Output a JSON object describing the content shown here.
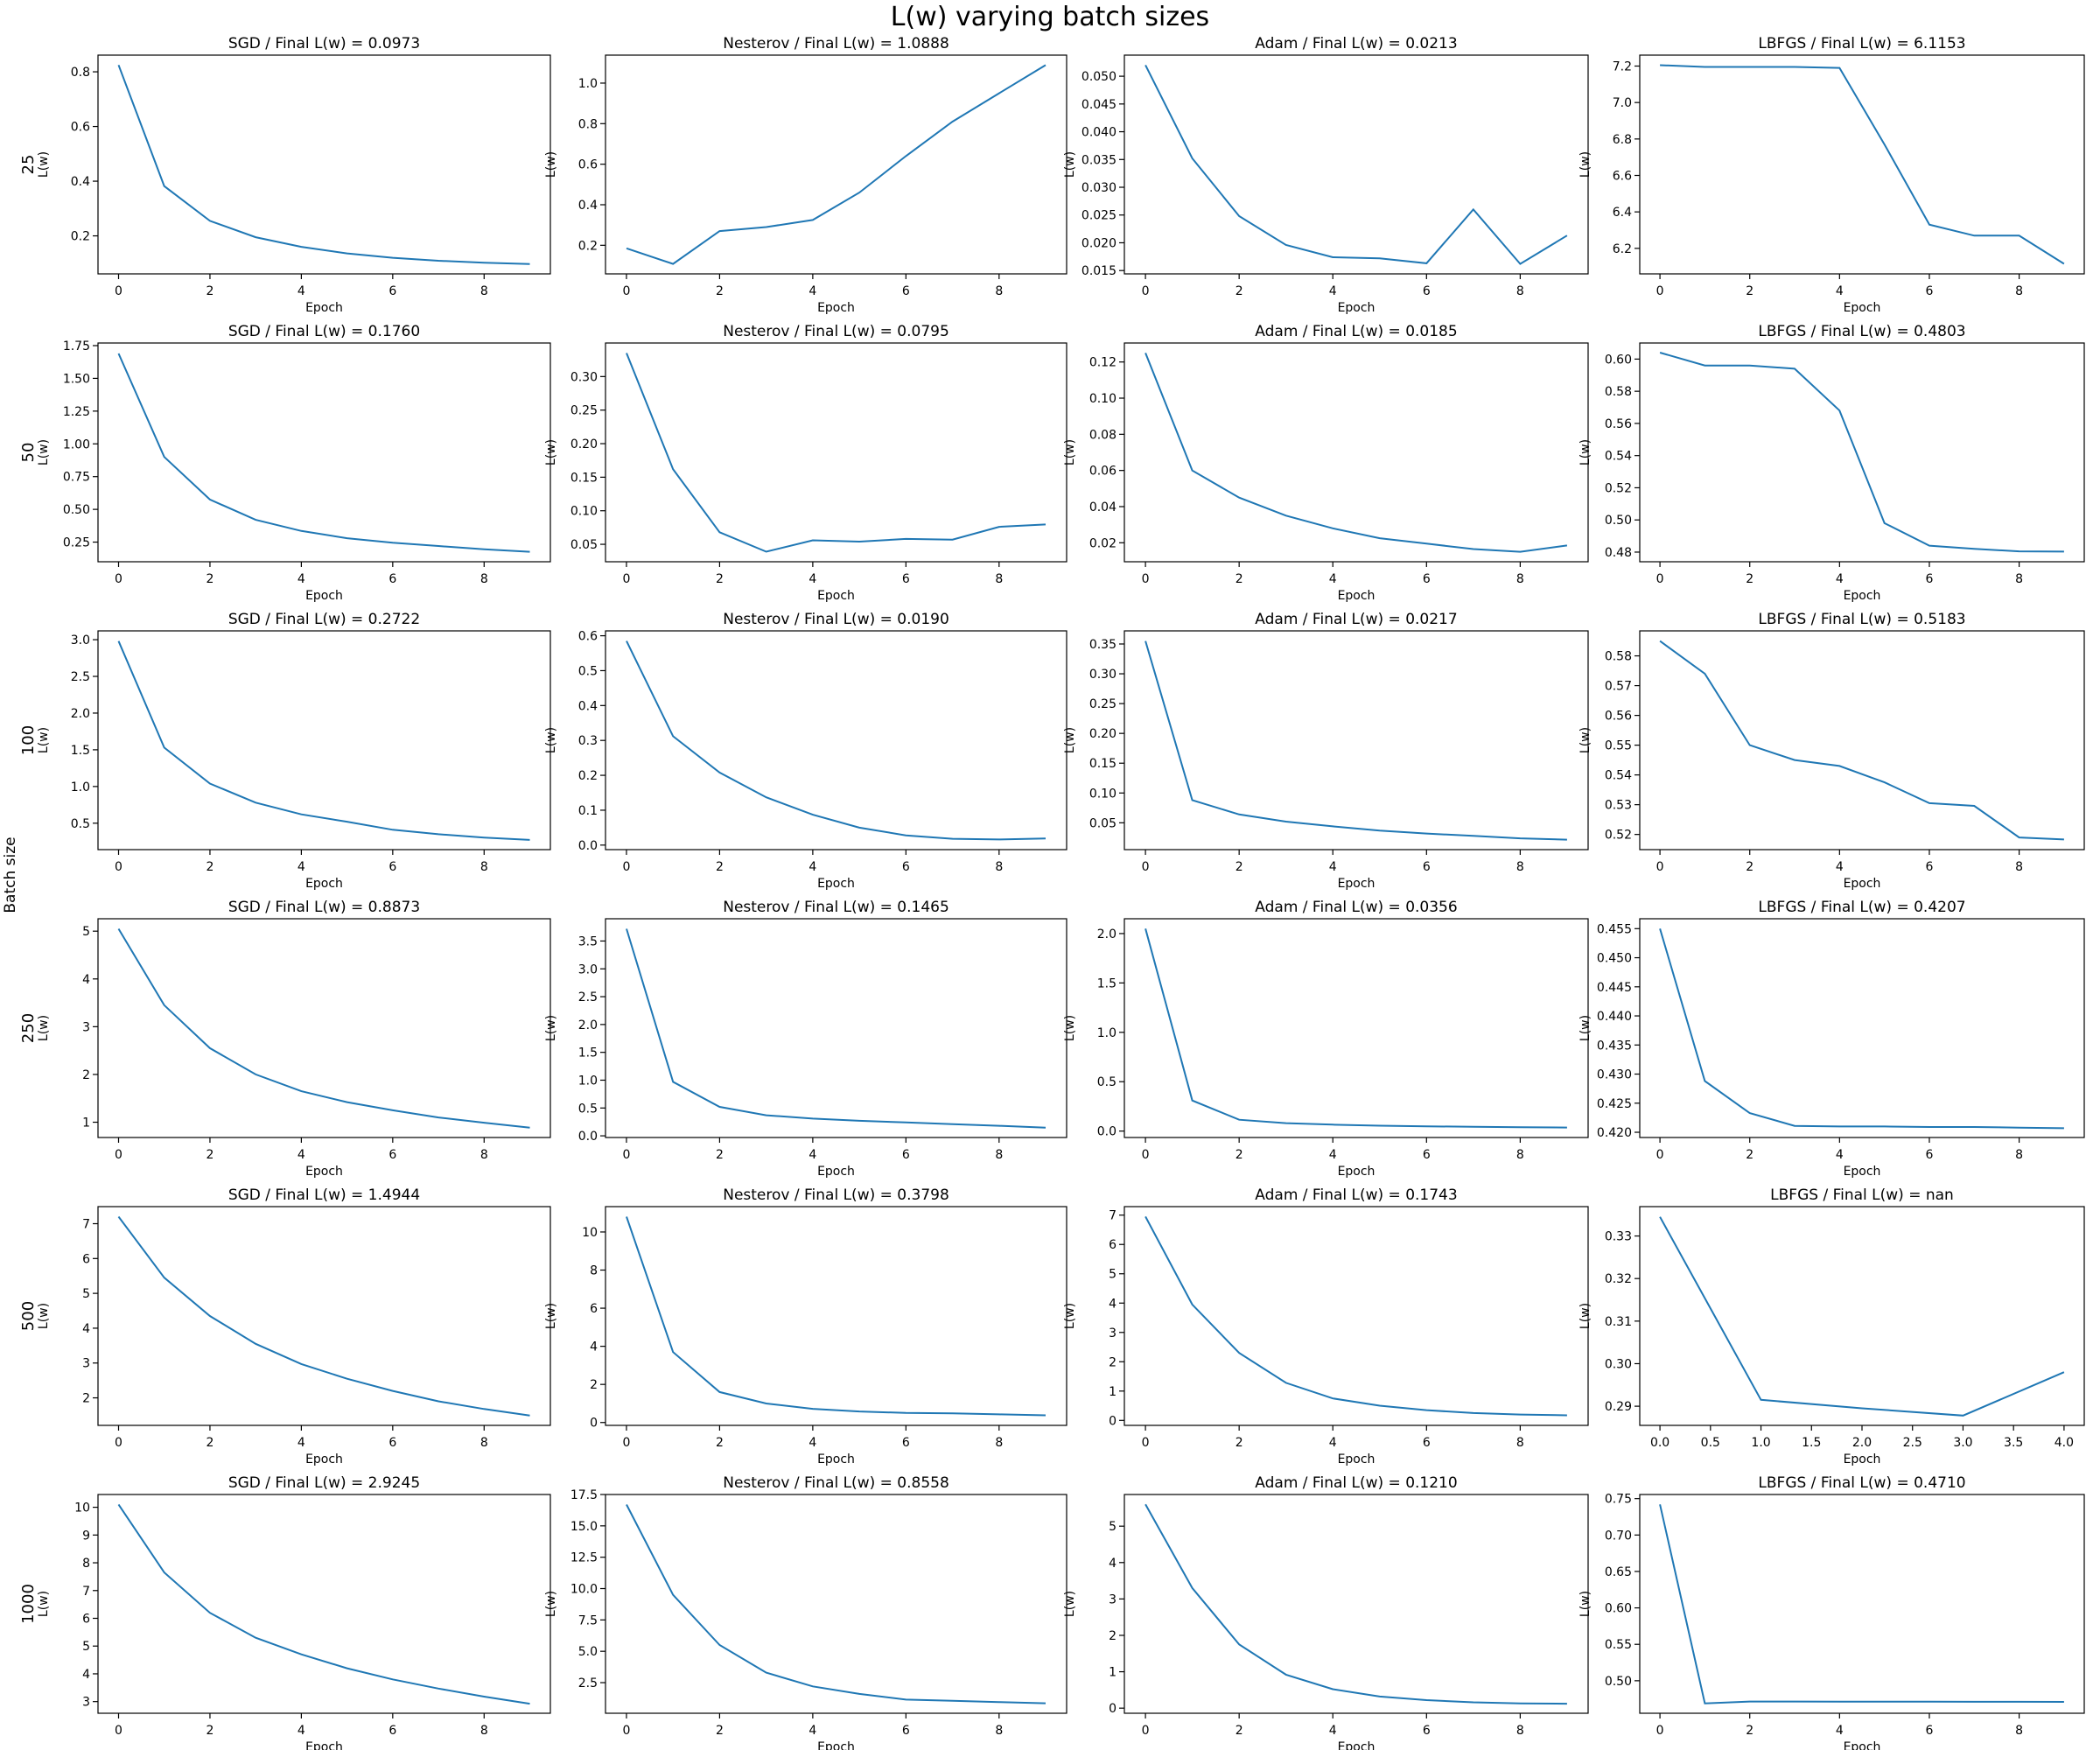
{
  "figure": {
    "title": "L(w) varying batch sizes",
    "ylabel": "Batch size"
  },
  "row_labels": [
    "25",
    "50",
    "100",
    "250",
    "500",
    "1000"
  ],
  "col_labels": [
    "SGD",
    "Nesterov",
    "Adam",
    "LBFGS"
  ],
  "colors": {
    "line": "#1f77b4",
    "axes": "#000000"
  },
  "chart_data": [
    {
      "type": "line",
      "title": "SGD / Final L(w) = 0.0973",
      "xlabel": "Epoch",
      "ylabel": "L(w)",
      "row_label": "25",
      "x": [
        0,
        1,
        2,
        3,
        4,
        5,
        6,
        7,
        8,
        9
      ],
      "y": [
        0.825,
        0.382,
        0.255,
        0.195,
        0.16,
        0.136,
        0.12,
        0.109,
        0.102,
        0.0973
      ],
      "xticks": [
        0,
        2,
        4,
        6,
        8
      ],
      "yticks": [
        0.2,
        0.4,
        0.6,
        0.8
      ],
      "xlim": [
        -0.45,
        9.45
      ],
      "ylim": [
        0.061,
        0.861
      ]
    },
    {
      "type": "line",
      "title": "Nesterov / Final L(w) = 1.0888",
      "xlabel": "Epoch",
      "ylabel": "L(w)",
      "x": [
        0,
        1,
        2,
        3,
        4,
        5,
        6,
        7,
        8,
        9
      ],
      "y": [
        0.185,
        0.108,
        0.27,
        0.29,
        0.325,
        0.46,
        0.64,
        0.81,
        0.95,
        1.0888
      ],
      "xticks": [
        0,
        2,
        4,
        6,
        8
      ],
      "yticks": [
        0.2,
        0.4,
        0.6,
        0.8,
        1.0
      ],
      "xlim": [
        -0.45,
        9.45
      ],
      "ylim": [
        0.059,
        1.138
      ]
    },
    {
      "type": "line",
      "title": "Adam / Final L(w) = 0.0213",
      "xlabel": "Epoch",
      "ylabel": "L(w)",
      "x": [
        0,
        1,
        2,
        3,
        4,
        5,
        6,
        7,
        8,
        9
      ],
      "y": [
        0.052,
        0.0352,
        0.0248,
        0.0196,
        0.0174,
        0.0172,
        0.0163,
        0.026,
        0.0162,
        0.0213
      ],
      "xticks": [
        0,
        2,
        4,
        6,
        8
      ],
      "yticks": [
        0.015,
        0.02,
        0.025,
        0.03,
        0.035,
        0.04,
        0.045,
        0.05
      ],
      "xlim": [
        -0.45,
        9.45
      ],
      "ylim": [
        0.0144,
        0.0538
      ]
    },
    {
      "type": "line",
      "title": "LBFGS / Final L(w) = 6.1153",
      "xlabel": "Epoch",
      "ylabel": "L(w)",
      "x": [
        0,
        1,
        2,
        3,
        4,
        5,
        6,
        7,
        8,
        9
      ],
      "y": [
        7.205,
        7.195,
        7.195,
        7.195,
        7.19,
        6.77,
        6.33,
        6.27,
        6.27,
        6.1153
      ],
      "xticks": [
        0,
        2,
        4,
        6,
        8
      ],
      "yticks": [
        6.2,
        6.4,
        6.6,
        6.8,
        7.0,
        7.2
      ],
      "xlim": [
        -0.45,
        9.45
      ],
      "ylim": [
        6.06,
        7.26
      ]
    },
    {
      "type": "line",
      "title": "SGD / Final L(w) = 0.1760",
      "xlabel": "Epoch",
      "ylabel": "L(w)",
      "row_label": "50",
      "x": [
        0,
        1,
        2,
        3,
        4,
        5,
        6,
        7,
        8,
        9
      ],
      "y": [
        1.69,
        0.9,
        0.575,
        0.42,
        0.335,
        0.28,
        0.245,
        0.22,
        0.195,
        0.176
      ],
      "xticks": [
        0,
        2,
        4,
        6,
        8
      ],
      "yticks": [
        0.25,
        0.5,
        0.75,
        1.0,
        1.25,
        1.5,
        1.75
      ],
      "xlim": [
        -0.45,
        9.45
      ],
      "ylim": [
        0.1,
        1.77
      ]
    },
    {
      "type": "line",
      "title": "Nesterov / Final L(w) = 0.0795",
      "xlabel": "Epoch",
      "ylabel": "L(w)",
      "x": [
        0,
        1,
        2,
        3,
        4,
        5,
        6,
        7,
        8,
        9
      ],
      "y": [
        0.335,
        0.162,
        0.068,
        0.039,
        0.056,
        0.054,
        0.058,
        0.057,
        0.076,
        0.0795
      ],
      "xticks": [
        0,
        2,
        4,
        6,
        8
      ],
      "yticks": [
        0.05,
        0.1,
        0.15,
        0.2,
        0.25,
        0.3
      ],
      "xlim": [
        -0.45,
        9.45
      ],
      "ylim": [
        0.024,
        0.35
      ]
    },
    {
      "type": "line",
      "title": "Adam / Final L(w) = 0.0185",
      "xlabel": "Epoch",
      "ylabel": "L(w)",
      "x": [
        0,
        1,
        2,
        3,
        4,
        5,
        6,
        7,
        8,
        9
      ],
      "y": [
        0.125,
        0.06,
        0.045,
        0.035,
        0.028,
        0.0225,
        0.0195,
        0.0165,
        0.015,
        0.0185
      ],
      "xticks": [
        0,
        2,
        4,
        6,
        8
      ],
      "yticks": [
        0.02,
        0.04,
        0.06,
        0.08,
        0.1,
        0.12
      ],
      "xlim": [
        -0.45,
        9.45
      ],
      "ylim": [
        0.0095,
        0.1305
      ]
    },
    {
      "type": "line",
      "title": "LBFGS / Final L(w) = 0.4803",
      "xlabel": "Epoch",
      "ylabel": "L(w)",
      "x": [
        0,
        1,
        2,
        3,
        4,
        5,
        6,
        7,
        8,
        9
      ],
      "y": [
        0.604,
        0.596,
        0.596,
        0.594,
        0.568,
        0.498,
        0.484,
        0.482,
        0.4805,
        0.4803
      ],
      "xticks": [
        0,
        2,
        4,
        6,
        8
      ],
      "yticks": [
        0.48,
        0.5,
        0.52,
        0.54,
        0.56,
        0.58,
        0.6
      ],
      "xlim": [
        -0.45,
        9.45
      ],
      "ylim": [
        0.474,
        0.61
      ]
    },
    {
      "type": "line",
      "title": "SGD / Final L(w) = 0.2722",
      "xlabel": "Epoch",
      "ylabel": "L(w)",
      "row_label": "100",
      "x": [
        0,
        1,
        2,
        3,
        4,
        5,
        6,
        7,
        8,
        9
      ],
      "y": [
        2.98,
        1.53,
        1.04,
        0.78,
        0.62,
        0.52,
        0.41,
        0.35,
        0.305,
        0.2722
      ],
      "xticks": [
        0,
        2,
        4,
        6,
        8
      ],
      "yticks": [
        0.5,
        1.0,
        1.5,
        2.0,
        2.5,
        3.0
      ],
      "xlim": [
        -0.45,
        9.45
      ],
      "ylim": [
        0.14,
        3.12
      ]
    },
    {
      "type": "line",
      "title": "Nesterov / Final L(w) = 0.0190",
      "xlabel": "Epoch",
      "ylabel": "L(w)",
      "x": [
        0,
        1,
        2,
        3,
        4,
        5,
        6,
        7,
        8,
        9
      ],
      "y": [
        0.585,
        0.312,
        0.208,
        0.137,
        0.087,
        0.05,
        0.028,
        0.018,
        0.016,
        0.019
      ],
      "xticks": [
        0,
        2,
        4,
        6,
        8
      ],
      "yticks": [
        0.0,
        0.1,
        0.2,
        0.3,
        0.4,
        0.5,
        0.6
      ],
      "xlim": [
        -0.45,
        9.45
      ],
      "ylim": [
        -0.013,
        0.614
      ]
    },
    {
      "type": "line",
      "title": "Adam / Final L(w) = 0.0217",
      "xlabel": "Epoch",
      "ylabel": "L(w)",
      "x": [
        0,
        1,
        2,
        3,
        4,
        5,
        6,
        7,
        8,
        9
      ],
      "y": [
        0.355,
        0.088,
        0.064,
        0.052,
        0.044,
        0.037,
        0.032,
        0.028,
        0.024,
        0.0217
      ],
      "xticks": [
        0,
        2,
        4,
        6,
        8
      ],
      "yticks": [
        0.05,
        0.1,
        0.15,
        0.2,
        0.25,
        0.3,
        0.35
      ],
      "xlim": [
        -0.45,
        9.45
      ],
      "ylim": [
        0.005,
        0.372
      ]
    },
    {
      "type": "line",
      "title": "LBFGS / Final L(w) = 0.5183",
      "xlabel": "Epoch",
      "ylabel": "L(w)",
      "x": [
        0,
        1,
        2,
        3,
        4,
        5,
        6,
        7,
        8,
        9
      ],
      "y": [
        0.585,
        0.574,
        0.55,
        0.545,
        0.543,
        0.5375,
        0.5305,
        0.5296,
        0.519,
        0.5183
      ],
      "xticks": [
        0,
        2,
        4,
        6,
        8
      ],
      "yticks": [
        0.52,
        0.53,
        0.54,
        0.55,
        0.56,
        0.57,
        0.58
      ],
      "xlim": [
        -0.45,
        9.45
      ],
      "ylim": [
        0.5149,
        0.5884
      ]
    },
    {
      "type": "line",
      "title": "SGD / Final L(w) = 0.8873",
      "xlabel": "Epoch",
      "ylabel": "L(w)",
      "row_label": "250",
      "x": [
        0,
        1,
        2,
        3,
        4,
        5,
        6,
        7,
        8,
        9
      ],
      "y": [
        5.05,
        3.45,
        2.55,
        2.0,
        1.65,
        1.42,
        1.25,
        1.1,
        0.99,
        0.8873
      ],
      "xticks": [
        0,
        2,
        4,
        6,
        8
      ],
      "yticks": [
        1,
        2,
        3,
        4,
        5
      ],
      "xlim": [
        -0.45,
        9.45
      ],
      "ylim": [
        0.68,
        5.26
      ]
    },
    {
      "type": "line",
      "title": "Nesterov / Final L(w) = 0.1465",
      "xlabel": "Epoch",
      "ylabel": "L(w)",
      "x": [
        0,
        1,
        2,
        3,
        4,
        5,
        6,
        7,
        8,
        9
      ],
      "y": [
        3.72,
        0.97,
        0.52,
        0.37,
        0.31,
        0.27,
        0.24,
        0.21,
        0.18,
        0.1465
      ],
      "xticks": [
        0,
        2,
        4,
        6,
        8
      ],
      "yticks": [
        0.0,
        0.5,
        1.0,
        1.5,
        2.0,
        2.5,
        3.0,
        3.5
      ],
      "xlim": [
        -0.45,
        9.45
      ],
      "ylim": [
        -0.03,
        3.9
      ]
    },
    {
      "type": "line",
      "title": "Adam / Final L(w) = 0.0356",
      "xlabel": "Epoch",
      "ylabel": "L(w)",
      "x": [
        0,
        1,
        2,
        3,
        4,
        5,
        6,
        7,
        8,
        9
      ],
      "y": [
        2.05,
        0.31,
        0.115,
        0.08,
        0.065,
        0.055,
        0.048,
        0.043,
        0.039,
        0.0356
      ],
      "xticks": [
        0,
        2,
        4,
        6,
        8
      ],
      "yticks": [
        0.0,
        0.5,
        1.0,
        1.5,
        2.0
      ],
      "xlim": [
        -0.45,
        9.45
      ],
      "ylim": [
        -0.065,
        2.15
      ]
    },
    {
      "type": "line",
      "title": "LBFGS / Final L(w) = 0.4207",
      "xlabel": "Epoch",
      "ylabel": "L(w)",
      "x": [
        0,
        1,
        2,
        3,
        4,
        5,
        6,
        7,
        8,
        9
      ],
      "y": [
        0.455,
        0.4288,
        0.4233,
        0.4211,
        0.421,
        0.421,
        0.4209,
        0.4209,
        0.4208,
        0.4207
      ],
      "xticks": [
        0,
        2,
        4,
        6,
        8
      ],
      "yticks": [
        0.42,
        0.425,
        0.43,
        0.435,
        0.44,
        0.445,
        0.45,
        0.455
      ],
      "xlim": [
        -0.45,
        9.45
      ],
      "ylim": [
        0.4191,
        0.4567
      ]
    },
    {
      "type": "line",
      "title": "SGD / Final L(w) = 1.4944",
      "xlabel": "Epoch",
      "ylabel": "L(w)",
      "row_label": "500",
      "x": [
        0,
        1,
        2,
        3,
        4,
        5,
        6,
        7,
        8,
        9
      ],
      "y": [
        7.2,
        5.45,
        4.35,
        3.55,
        2.97,
        2.55,
        2.2,
        1.9,
        1.68,
        1.4944
      ],
      "xticks": [
        0,
        2,
        4,
        6,
        8
      ],
      "yticks": [
        2,
        3,
        4,
        5,
        6,
        7
      ],
      "xlim": [
        -0.45,
        9.45
      ],
      "ylim": [
        1.21,
        7.49
      ]
    },
    {
      "type": "line",
      "title": "Nesterov / Final L(w) = 0.3798",
      "xlabel": "Epoch",
      "ylabel": "L(w)",
      "x": [
        0,
        1,
        2,
        3,
        4,
        5,
        6,
        7,
        8,
        9
      ],
      "y": [
        10.8,
        3.7,
        1.6,
        1.0,
        0.72,
        0.58,
        0.5,
        0.48,
        0.43,
        0.3798
      ],
      "xticks": [
        0,
        2,
        4,
        6,
        8
      ],
      "yticks": [
        0,
        2,
        4,
        6,
        8,
        10
      ],
      "xlim": [
        -0.45,
        9.45
      ],
      "ylim": [
        -0.15,
        11.33
      ]
    },
    {
      "type": "line",
      "title": "Adam / Final L(w) = 0.1743",
      "xlabel": "Epoch",
      "ylabel": "L(w)",
      "x": [
        0,
        1,
        2,
        3,
        4,
        5,
        6,
        7,
        8,
        9
      ],
      "y": [
        6.95,
        3.95,
        2.3,
        1.28,
        0.75,
        0.5,
        0.35,
        0.25,
        0.2,
        0.1743
      ],
      "xticks": [
        0,
        2,
        4,
        6,
        8
      ],
      "yticks": [
        0,
        1,
        2,
        3,
        4,
        5,
        6,
        7
      ],
      "xlim": [
        -0.45,
        9.45
      ],
      "ylim": [
        -0.17,
        7.29
      ]
    },
    {
      "type": "line",
      "title": "LBFGS / Final L(w) = nan",
      "xlabel": "Epoch",
      "ylabel": "L(w)",
      "x": [
        0,
        1,
        2,
        3,
        4
      ],
      "y": [
        0.3345,
        0.2915,
        0.2895,
        0.2878,
        0.298
      ],
      "xticks": [
        0.0,
        0.5,
        1.0,
        1.5,
        2.0,
        2.5,
        3.0,
        3.5,
        4.0
      ],
      "yticks": [
        0.29,
        0.3,
        0.31,
        0.32,
        0.33
      ],
      "xlim": [
        -0.2,
        4.2
      ],
      "ylim": [
        0.2855,
        0.3369
      ]
    },
    {
      "type": "line",
      "title": "SGD / Final L(w) = 2.9245",
      "xlabel": "Epoch",
      "ylabel": "L(w)",
      "row_label": "1000",
      "x": [
        0,
        1,
        2,
        3,
        4,
        5,
        6,
        7,
        8,
        9
      ],
      "y": [
        10.1,
        7.65,
        6.2,
        5.3,
        4.7,
        4.2,
        3.8,
        3.47,
        3.18,
        2.9245
      ],
      "xticks": [
        0,
        2,
        4,
        6,
        8
      ],
      "yticks": [
        3,
        4,
        5,
        6,
        7,
        8,
        9,
        10
      ],
      "xlim": [
        -0.45,
        9.45
      ],
      "ylim": [
        2.58,
        10.46
      ]
    },
    {
      "type": "line",
      "title": "Nesterov / Final L(w) = 0.8558",
      "xlabel": "Epoch",
      "ylabel": "L(w)",
      "x": [
        0,
        1,
        2,
        3,
        4,
        5,
        6,
        7,
        8,
        9
      ],
      "y": [
        16.7,
        9.5,
        5.5,
        3.3,
        2.2,
        1.6,
        1.15,
        1.05,
        0.95,
        0.8558
      ],
      "xticks": [
        0,
        2,
        4,
        6,
        8
      ],
      "yticks": [
        2.5,
        5.0,
        7.5,
        10.0,
        12.5,
        15.0,
        17.5
      ],
      "xlim": [
        -0.45,
        9.45
      ],
      "ylim": [
        0.06,
        17.5
      ]
    },
    {
      "type": "line",
      "title": "Adam / Final L(w) = 0.1210",
      "xlabel": "Epoch",
      "ylabel": "L(w)",
      "x": [
        0,
        1,
        2,
        3,
        4,
        5,
        6,
        7,
        8,
        9
      ],
      "y": [
        5.6,
        3.3,
        1.75,
        0.92,
        0.52,
        0.32,
        0.22,
        0.16,
        0.13,
        0.121
      ],
      "xticks": [
        0,
        2,
        4,
        6,
        8
      ],
      "yticks": [
        0,
        1,
        2,
        3,
        4,
        5
      ],
      "xlim": [
        -0.45,
        9.45
      ],
      "ylim": [
        -0.14,
        5.87
      ]
    },
    {
      "type": "line",
      "title": "LBFGS / Final L(w) = 0.4710",
      "xlabel": "Epoch",
      "ylabel": "L(w)",
      "x": [
        0,
        1,
        2,
        3,
        4,
        5,
        6,
        7,
        8,
        9
      ],
      "y": [
        0.742,
        0.469,
        0.4715,
        0.4715,
        0.4714,
        0.4713,
        0.4712,
        0.4711,
        0.4711,
        0.471
      ],
      "xticks": [
        0,
        2,
        4,
        6,
        8
      ],
      "yticks": [
        0.5,
        0.55,
        0.6,
        0.65,
        0.7,
        0.75
      ],
      "xlim": [
        -0.45,
        9.45
      ],
      "ylim": [
        0.4554,
        0.7556
      ]
    }
  ]
}
